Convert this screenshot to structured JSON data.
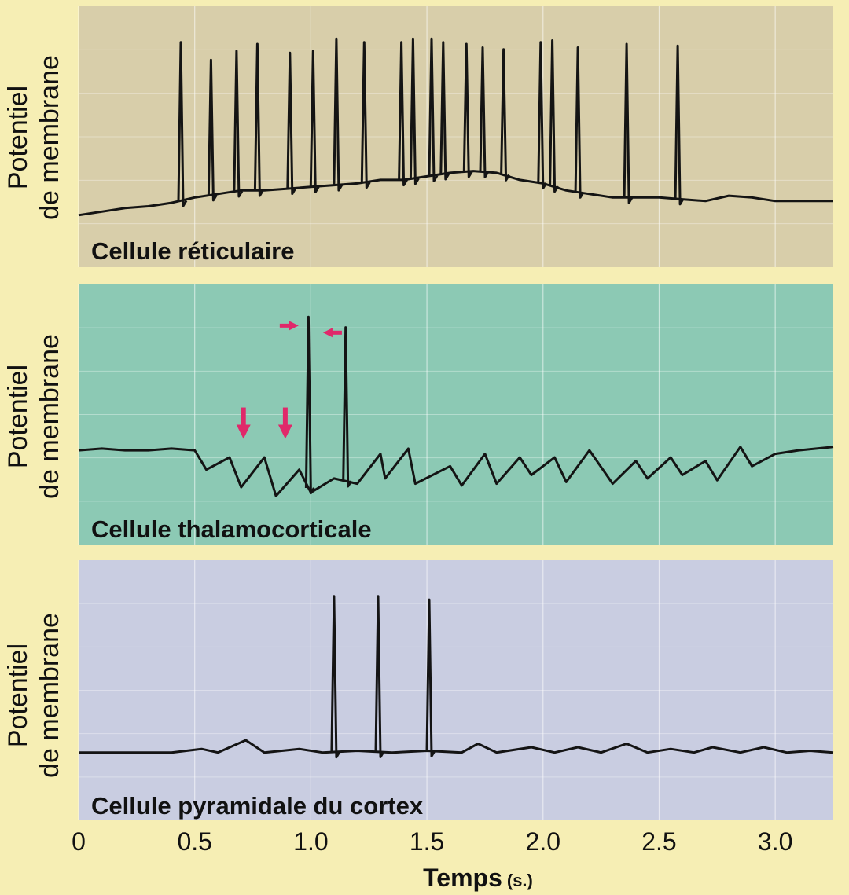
{
  "chart_data": {
    "type": "line",
    "x_axis": {
      "label": "Temps",
      "unit": "(s.)",
      "ticks": [
        "0",
        "0.5",
        "1.0",
        "1.5",
        "2.0",
        "2.5",
        "3.0"
      ],
      "tick_values": [
        0,
        0.5,
        1.0,
        1.5,
        2.0,
        2.5,
        3.0
      ],
      "range": [
        0,
        3.25
      ]
    },
    "grid": true,
    "panels": [
      {
        "title": "Cellule réticulaire",
        "ylabel_line1": "Potentiel",
        "ylabel_line2": "de membrane",
        "background": "#d8ceaa",
        "y_range": [
          -0.05,
          1.05
        ],
        "baseline": [
          [
            0,
            0.0
          ],
          [
            0.1,
            0.02
          ],
          [
            0.2,
            0.04
          ],
          [
            0.3,
            0.05
          ],
          [
            0.4,
            0.07
          ],
          [
            0.5,
            0.1
          ],
          [
            0.6,
            0.12
          ],
          [
            0.7,
            0.14
          ],
          [
            0.8,
            0.14
          ],
          [
            0.9,
            0.15
          ],
          [
            1.0,
            0.16
          ],
          [
            1.1,
            0.17
          ],
          [
            1.2,
            0.18
          ],
          [
            1.3,
            0.2
          ],
          [
            1.4,
            0.2
          ],
          [
            1.5,
            0.22
          ],
          [
            1.6,
            0.24
          ],
          [
            1.7,
            0.25
          ],
          [
            1.8,
            0.24
          ],
          [
            1.9,
            0.2
          ],
          [
            2.0,
            0.18
          ],
          [
            2.1,
            0.14
          ],
          [
            2.2,
            0.12
          ],
          [
            2.3,
            0.1
          ],
          [
            2.4,
            0.1
          ],
          [
            2.5,
            0.1
          ],
          [
            2.6,
            0.09
          ],
          [
            2.7,
            0.08
          ],
          [
            2.8,
            0.11
          ],
          [
            2.9,
            0.1
          ],
          [
            3.0,
            0.08
          ],
          [
            3.1,
            0.08
          ],
          [
            3.25,
            0.08
          ]
        ],
        "spikes": [
          {
            "t": 0.44,
            "h": 0.98
          },
          {
            "t": 0.57,
            "h": 0.88
          },
          {
            "t": 0.68,
            "h": 0.93
          },
          {
            "t": 0.77,
            "h": 0.97
          },
          {
            "t": 0.91,
            "h": 0.92
          },
          {
            "t": 1.01,
            "h": 0.93
          },
          {
            "t": 1.11,
            "h": 1.0
          },
          {
            "t": 1.23,
            "h": 0.98
          },
          {
            "t": 1.39,
            "h": 0.98
          },
          {
            "t": 1.44,
            "h": 1.0
          },
          {
            "t": 1.52,
            "h": 1.0
          },
          {
            "t": 1.57,
            "h": 0.98
          },
          {
            "t": 1.67,
            "h": 0.97
          },
          {
            "t": 1.74,
            "h": 0.95
          },
          {
            "t": 1.83,
            "h": 0.94
          },
          {
            "t": 1.99,
            "h": 0.98
          },
          {
            "t": 2.04,
            "h": 0.99
          },
          {
            "t": 2.15,
            "h": 0.95
          },
          {
            "t": 2.36,
            "h": 0.97
          },
          {
            "t": 2.58,
            "h": 0.96
          }
        ],
        "annotations": []
      },
      {
        "title": "Cellule thalamocorticale",
        "ylabel_line1": "Potentiel",
        "ylabel_line2": "de membrane",
        "background": "#8cc9b4",
        "y_range": [
          -0.05,
          1.05
        ],
        "baseline": [
          [
            0,
            0.24
          ],
          [
            0.1,
            0.25
          ],
          [
            0.2,
            0.24
          ],
          [
            0.3,
            0.24
          ],
          [
            0.4,
            0.25
          ],
          [
            0.5,
            0.24
          ],
          [
            0.55,
            0.13
          ],
          [
            0.65,
            0.2
          ],
          [
            0.7,
            0.03
          ],
          [
            0.8,
            0.2
          ],
          [
            0.85,
            -0.02
          ],
          [
            0.95,
            0.13
          ],
          [
            1.0,
            0.0
          ],
          [
            1.1,
            0.08
          ],
          [
            1.2,
            0.05
          ],
          [
            1.3,
            0.22
          ],
          [
            1.32,
            0.08
          ],
          [
            1.42,
            0.25
          ],
          [
            1.45,
            0.05
          ],
          [
            1.6,
            0.15
          ],
          [
            1.65,
            0.04
          ],
          [
            1.75,
            0.22
          ],
          [
            1.8,
            0.05
          ],
          [
            1.9,
            0.2
          ],
          [
            1.95,
            0.1
          ],
          [
            2.05,
            0.2
          ],
          [
            2.1,
            0.06
          ],
          [
            2.2,
            0.24
          ],
          [
            2.3,
            0.05
          ],
          [
            2.4,
            0.18
          ],
          [
            2.45,
            0.08
          ],
          [
            2.55,
            0.2
          ],
          [
            2.6,
            0.1
          ],
          [
            2.7,
            0.18
          ],
          [
            2.75,
            0.07
          ],
          [
            2.85,
            0.26
          ],
          [
            2.9,
            0.15
          ],
          [
            3.0,
            0.22
          ],
          [
            3.1,
            0.24
          ],
          [
            3.25,
            0.26
          ]
        ],
        "spikes": [
          {
            "t": 0.99,
            "h": 1.0
          },
          {
            "t": 1.15,
            "h": 0.94
          }
        ],
        "annotations": [
          {
            "type": "down-arrow",
            "t": 0.71,
            "y": 0.35
          },
          {
            "type": "down-arrow",
            "t": 0.89,
            "y": 0.35
          },
          {
            "type": "right-arrow",
            "t": 0.9,
            "y": 0.95
          },
          {
            "type": "left-arrow",
            "t": 1.1,
            "y": 0.91
          }
        ]
      },
      {
        "title": "Cellule pyramidale du cortex",
        "ylabel_line1": "Potentiel",
        "ylabel_line2": "de membrane",
        "background": "#c9cde1",
        "y_range": [
          -0.05,
          1.05
        ],
        "baseline": [
          [
            0,
            0.09
          ],
          [
            0.2,
            0.09
          ],
          [
            0.4,
            0.09
          ],
          [
            0.53,
            0.11
          ],
          [
            0.6,
            0.09
          ],
          [
            0.72,
            0.16
          ],
          [
            0.8,
            0.09
          ],
          [
            0.95,
            0.11
          ],
          [
            1.05,
            0.09
          ],
          [
            1.2,
            0.1
          ],
          [
            1.35,
            0.09
          ],
          [
            1.5,
            0.1
          ],
          [
            1.65,
            0.09
          ],
          [
            1.72,
            0.14
          ],
          [
            1.8,
            0.09
          ],
          [
            1.95,
            0.12
          ],
          [
            2.05,
            0.09
          ],
          [
            2.15,
            0.12
          ],
          [
            2.25,
            0.09
          ],
          [
            2.36,
            0.14
          ],
          [
            2.45,
            0.09
          ],
          [
            2.55,
            0.11
          ],
          [
            2.65,
            0.09
          ],
          [
            2.73,
            0.12
          ],
          [
            2.85,
            0.09
          ],
          [
            2.95,
            0.12
          ],
          [
            3.05,
            0.09
          ],
          [
            3.15,
            0.1
          ],
          [
            3.25,
            0.09
          ]
        ],
        "spikes": [
          {
            "t": 1.1,
            "h": 0.98
          },
          {
            "t": 1.29,
            "h": 0.98
          },
          {
            "t": 1.51,
            "h": 0.96
          }
        ],
        "annotations": []
      }
    ]
  },
  "colors": {
    "page_background": "#f6eeb4",
    "trace": "#141414",
    "grid": "#ffffff",
    "annotation_arrow": "#e0286a"
  }
}
